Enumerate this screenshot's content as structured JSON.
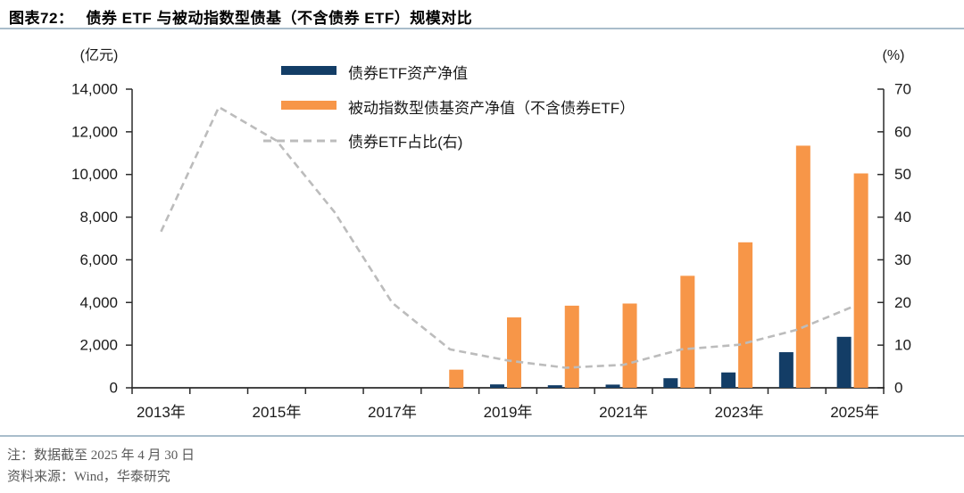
{
  "header": {
    "figure_label": "图表72：",
    "title": "债券 ETF 与被动指数型债基（不含债券 ETF）规模对比"
  },
  "footer": {
    "note": "注：数据截至 2025 年 4 月 30 日",
    "source": "资料来源：Wind，华泰研究"
  },
  "colors": {
    "bond_etf_bar": "#133d66",
    "passive_bar": "#f79648",
    "ratio_line": "#bcbcbc",
    "divider_rule": "#a9bdcb",
    "axis": "#2b2b2b",
    "note_text": "#595959"
  },
  "chart_data": {
    "type": "bar",
    "subtype": "bars-with-secondary-axis-line",
    "categories": [
      "2013年",
      "2014年",
      "2015年",
      "2016年",
      "2017年",
      "2018年",
      "2019年",
      "2020年",
      "2021年",
      "2022年",
      "2023年",
      "2024年",
      "2025年"
    ],
    "x_tick_labels_shown": [
      "2013年",
      "2015年",
      "2017年",
      "2019年",
      "2021年",
      "2023年",
      "2025年"
    ],
    "series": [
      {
        "name": "债券ETF资产净值",
        "type": "bar",
        "axis": "left",
        "color": "#133d66",
        "values": [
          0,
          0,
          0,
          0,
          0,
          0,
          160,
          120,
          150,
          450,
          720,
          1670,
          2390
        ]
      },
      {
        "name": "被动指数型债基资产净值（不含债券ETF）",
        "type": "bar",
        "axis": "left",
        "color": "#f79648",
        "values": [
          0,
          0,
          0,
          0,
          0,
          850,
          3300,
          3850,
          3950,
          5250,
          6820,
          11350,
          10050
        ]
      },
      {
        "name": "债券ETF占比(右)",
        "type": "line",
        "style": "dashed",
        "axis": "right",
        "color": "#bcbcbc",
        "values": [
          36.6,
          65.8,
          57.9,
          41.2,
          19.9,
          9.0,
          6.4,
          4.7,
          5.4,
          9.0,
          10.1,
          13.6,
          19.2
        ]
      }
    ],
    "left_axis": {
      "label": "(亿元)",
      "min": 0,
      "max": 14000,
      "step": 2000
    },
    "right_axis": {
      "label": "(%)",
      "min": 0,
      "max": 70,
      "step": 10
    },
    "grid": false,
    "legend_position": "top-center"
  }
}
